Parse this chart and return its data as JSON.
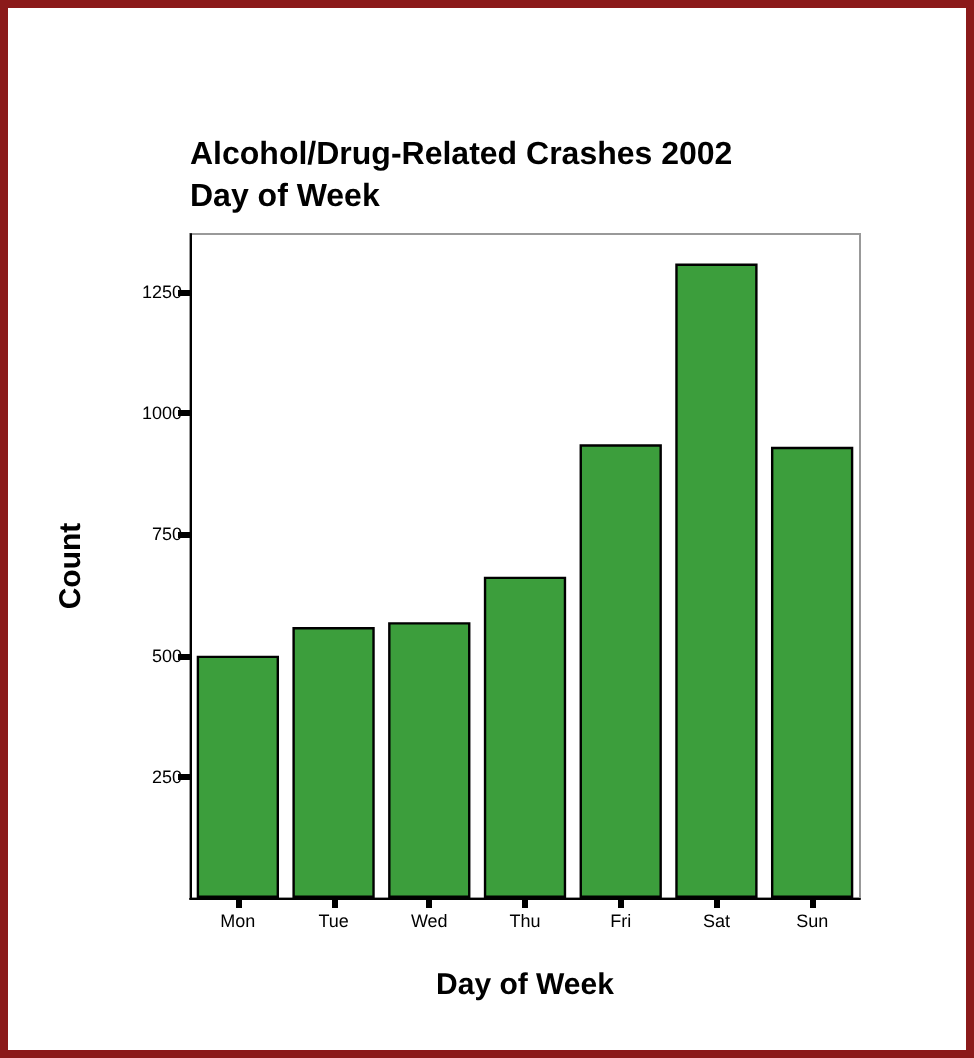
{
  "chart_data": {
    "type": "bar",
    "title": "Alcohol/Drug-Related Crashes 2002\nDay of Week",
    "xlabel": "Day of Week",
    "ylabel": "Count",
    "categories": [
      "Mon",
      "Tue",
      "Wed",
      "Thu",
      "Fri",
      "Sat",
      "Sun"
    ],
    "values": [
      500,
      559,
      569,
      663,
      936,
      1309,
      931
    ],
    "color": "#3c9e3c",
    "ylim": [
      0,
      1370
    ],
    "yticks": [
      250,
      500,
      750,
      1000,
      1250
    ],
    "grid": false
  }
}
